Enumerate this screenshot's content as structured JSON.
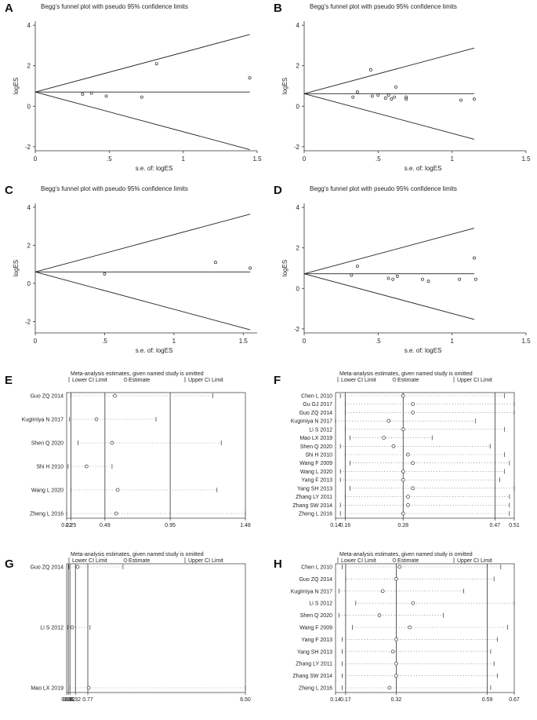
{
  "figure": {
    "panels": [
      "A",
      "B",
      "C",
      "D",
      "E",
      "F",
      "G",
      "H"
    ]
  },
  "chart_data": [
    {
      "id": "A",
      "type": "scatter",
      "subtype": "funnel",
      "title": "Begg's funnel plot with pseudo 95% confidence limits",
      "xlabel": "s.e. of: logES",
      "ylabel": "logES",
      "xlim": [
        0,
        1.5
      ],
      "ylim": [
        -2.2,
        4.2
      ],
      "xticks": [
        0,
        0.5,
        1,
        1.5
      ],
      "xtick_labels": [
        "0",
        ".5",
        "1",
        "1.5"
      ],
      "yticks": [
        -2,
        0,
        2,
        4
      ],
      "ytick_labels": [
        "-2",
        "0",
        "2",
        "4"
      ],
      "pooled": 0.7,
      "funnel_xmax": 1.45,
      "points": [
        [
          0.32,
          0.6
        ],
        [
          0.38,
          0.65
        ],
        [
          0.48,
          0.5
        ],
        [
          0.72,
          0.45
        ],
        [
          0.82,
          2.1
        ],
        [
          1.45,
          1.4
        ]
      ]
    },
    {
      "id": "B",
      "type": "scatter",
      "subtype": "funnel",
      "title": "Begg's funnel plot with pseudo 95% confidence limits",
      "xlabel": "s.e. of: logES",
      "ylabel": "logES",
      "xlim": [
        0,
        1.5
      ],
      "ylim": [
        -2.2,
        4.2
      ],
      "xticks": [
        0,
        0.5,
        1,
        1.5
      ],
      "xtick_labels": [
        "0",
        ".5",
        "1",
        "1.5"
      ],
      "yticks": [
        -2,
        0,
        2,
        4
      ],
      "ytick_labels": [
        "-2",
        "0",
        "2",
        "4"
      ],
      "pooled": 0.62,
      "funnel_xmax": 1.15,
      "points": [
        [
          0.33,
          0.45
        ],
        [
          0.36,
          0.7
        ],
        [
          0.45,
          1.8
        ],
        [
          0.46,
          0.5
        ],
        [
          0.5,
          0.55
        ],
        [
          0.55,
          0.4
        ],
        [
          0.57,
          0.55
        ],
        [
          0.59,
          0.35
        ],
        [
          0.61,
          0.45
        ],
        [
          0.62,
          0.95
        ],
        [
          0.69,
          0.45
        ],
        [
          0.69,
          0.35
        ],
        [
          1.06,
          0.3
        ],
        [
          1.15,
          0.35
        ]
      ]
    },
    {
      "id": "C",
      "type": "scatter",
      "subtype": "funnel",
      "title": "Begg's funnel plot with pseudo 95% confidence limits",
      "xlabel": "s.e. of: logES",
      "ylabel": "logES",
      "xlim": [
        0,
        1.6
      ],
      "ylim": [
        -2.6,
        4.2
      ],
      "xticks": [
        0,
        0.5,
        1,
        1.5
      ],
      "xtick_labels": [
        "0",
        ".5",
        "1",
        "1.5"
      ],
      "yticks": [
        -2,
        0,
        2,
        4
      ],
      "ytick_labels": [
        "-2",
        "0",
        "2",
        "4"
      ],
      "pooled": 0.6,
      "funnel_xmax": 1.55,
      "points": [
        [
          0.5,
          0.5
        ],
        [
          1.3,
          1.1
        ],
        [
          1.55,
          0.8
        ]
      ]
    },
    {
      "id": "D",
      "type": "scatter",
      "subtype": "funnel",
      "title": "Begg's funnel plot with pseudo 95% confidence limits",
      "xlabel": "s.e. of: logES",
      "ylabel": "logES",
      "xlim": [
        0,
        1.5
      ],
      "ylim": [
        -2.2,
        4.2
      ],
      "xticks": [
        0,
        0.5,
        1,
        1.5
      ],
      "xtick_labels": [
        "0",
        ".5",
        "1",
        "1.5"
      ],
      "yticks": [
        -2,
        0,
        2,
        4
      ],
      "ytick_labels": [
        "-2",
        "0",
        "2",
        "4"
      ],
      "pooled": 0.72,
      "funnel_xmax": 1.15,
      "points": [
        [
          0.32,
          0.65
        ],
        [
          0.36,
          1.1
        ],
        [
          0.57,
          0.5
        ],
        [
          0.6,
          0.45
        ],
        [
          0.63,
          0.6
        ],
        [
          0.8,
          0.45
        ],
        [
          0.84,
          0.35
        ],
        [
          1.05,
          0.45
        ],
        [
          1.15,
          1.5
        ],
        [
          1.16,
          0.45
        ]
      ]
    },
    {
      "id": "E",
      "type": "forest",
      "subtype": "influence",
      "title": "Meta-analysis estimates, given named study is omitted",
      "legend": [
        "Lower CI Limit",
        "Estimate",
        "Upper CI Limit"
      ],
      "xlim": [
        0.22,
        1.48
      ],
      "xticks": [
        0.22,
        0.25,
        0.49,
        0.95,
        1.48
      ],
      "xtick_labels": [
        "0.22",
        "0.25",
        "0.49",
        "0.95",
        "1.48"
      ],
      "vlines": [
        0.25,
        0.49,
        0.95
      ],
      "studies": [
        {
          "label": "Guo ZQ 2014",
          "lower": 0.25,
          "est": 0.56,
          "upper": 1.25
        },
        {
          "label": "Kugimiya N 2017",
          "lower": 0.24,
          "est": 0.43,
          "upper": 0.85
        },
        {
          "label": "Shen Q 2020",
          "lower": 0.3,
          "est": 0.54,
          "upper": 1.31
        },
        {
          "label": "Shi H 2010",
          "lower": 0.23,
          "est": 0.36,
          "upper": 0.54
        },
        {
          "label": "Wang L 2020",
          "lower": 0.25,
          "est": 0.58,
          "upper": 1.28
        },
        {
          "label": "Zheng L 2016",
          "lower": 0.22,
          "est": 0.57,
          "upper": 1.48
        }
      ]
    },
    {
      "id": "F",
      "type": "forest",
      "subtype": "influence",
      "title": "Meta-analysis estimates, given named study is omitted",
      "legend": [
        "Lower CI Limit",
        "Estimate",
        "Upper CI Limit"
      ],
      "xlim": [
        0.14,
        0.51
      ],
      "xticks": [
        0.14,
        0.16,
        0.28,
        0.47,
        0.51
      ],
      "xtick_labels": [
        "0.14",
        "0.16",
        "0.28",
        "0.47",
        "0.51"
      ],
      "vlines": [
        0.16,
        0.28,
        0.47
      ],
      "studies": [
        {
          "label": "Chen L 2010",
          "lower": 0.15,
          "est": 0.28,
          "upper": 0.49
        },
        {
          "label": "Gu GJ 2017",
          "lower": 0.16,
          "est": 0.3,
          "upper": 0.51
        },
        {
          "label": "Guo ZQ 2014",
          "lower": 0.16,
          "est": 0.3,
          "upper": 0.51
        },
        {
          "label": "Kugimiya N 2017",
          "lower": 0.14,
          "est": 0.25,
          "upper": 0.43
        },
        {
          "label": "Li S 2012",
          "lower": 0.16,
          "est": 0.28,
          "upper": 0.49
        },
        {
          "label": "Mao LX 2019",
          "lower": 0.17,
          "est": 0.24,
          "upper": 0.34
        },
        {
          "label": "Shen Q 2020",
          "lower": 0.15,
          "est": 0.26,
          "upper": 0.46
        },
        {
          "label": "Shi H 2010",
          "lower": 0.16,
          "est": 0.29,
          "upper": 0.49
        },
        {
          "label": "Wang F 2009",
          "lower": 0.17,
          "est": 0.3,
          "upper": 0.5
        },
        {
          "label": "Wang L 2020",
          "lower": 0.15,
          "est": 0.28,
          "upper": 0.49
        },
        {
          "label": "Yang F 2013",
          "lower": 0.15,
          "est": 0.28,
          "upper": 0.48
        },
        {
          "label": "Yang SH 2013",
          "lower": 0.17,
          "est": 0.3,
          "upper": 0.51
        },
        {
          "label": "Zhang LY 2011",
          "lower": 0.16,
          "est": 0.29,
          "upper": 0.5
        },
        {
          "label": "Zhang SW 2014",
          "lower": 0.15,
          "est": 0.29,
          "upper": 0.5
        },
        {
          "label": "Zheng L 2016",
          "lower": 0.15,
          "est": 0.28,
          "upper": 0.5
        }
      ]
    },
    {
      "id": "G",
      "type": "forest",
      "subtype": "influence",
      "title": "Meta-analysis estimates, given named study is omitted",
      "legend": [
        "Lower CI Limit",
        "Estimate",
        "Upper CI Limit"
      ],
      "xlim": [
        0.0,
        6.5
      ],
      "xticks": [
        0.0,
        0.06,
        0.12,
        0.32,
        0.77,
        6.5
      ],
      "xtick_labels": [
        "0.00",
        "0.06",
        "0.12",
        "0.32",
        "0.77",
        "6.50"
      ],
      "vlines": [
        0.06,
        0.12,
        0.32,
        0.77
      ],
      "studies": [
        {
          "label": "Guo ZQ 2014",
          "lower": 0.08,
          "est": 0.4,
          "upper": 2.05
        },
        {
          "label": "Li S 2012",
          "lower": 0.04,
          "est": 0.2,
          "upper": 0.85
        },
        {
          "label": "Mao LX 2019",
          "lower": 0.12,
          "est": 0.8,
          "upper": 6.5
        }
      ]
    },
    {
      "id": "H",
      "type": "forest",
      "subtype": "influence",
      "title": "Meta-analysis estimates, given named study is omitted",
      "legend": [
        "Lower CI Limit",
        "Estimate",
        "Upper CI Limit"
      ],
      "xlim": [
        0.14,
        0.67
      ],
      "xticks": [
        0.14,
        0.17,
        0.32,
        0.59,
        0.67
      ],
      "xtick_labels": [
        "0.14",
        "0.17",
        "0.32",
        "0.59",
        "0.67"
      ],
      "vlines": [
        0.17,
        0.32,
        0.59
      ],
      "studies": [
        {
          "label": "Chen L 2010",
          "lower": 0.16,
          "est": 0.33,
          "upper": 0.63
        },
        {
          "label": "Guo ZQ 2014",
          "lower": 0.17,
          "est": 0.32,
          "upper": 0.61
        },
        {
          "label": "Kugimiya N 2017",
          "lower": 0.15,
          "est": 0.28,
          "upper": 0.52
        },
        {
          "label": "Li S 2012",
          "lower": 0.2,
          "est": 0.37,
          "upper": 0.67
        },
        {
          "label": "Shen Q 2020",
          "lower": 0.15,
          "est": 0.27,
          "upper": 0.46
        },
        {
          "label": "Wang F 2009",
          "lower": 0.19,
          "est": 0.36,
          "upper": 0.65
        },
        {
          "label": "Yang F 2013",
          "lower": 0.16,
          "est": 0.32,
          "upper": 0.62
        },
        {
          "label": "Yang SH 2013",
          "lower": 0.16,
          "est": 0.31,
          "upper": 0.6
        },
        {
          "label": "Zhang LY 2011",
          "lower": 0.16,
          "est": 0.32,
          "upper": 0.61
        },
        {
          "label": "Zhang SW 2014",
          "lower": 0.16,
          "est": 0.32,
          "upper": 0.62
        },
        {
          "label": "Zheng L 2016",
          "lower": 0.16,
          "est": 0.3,
          "upper": 0.6
        }
      ]
    }
  ]
}
